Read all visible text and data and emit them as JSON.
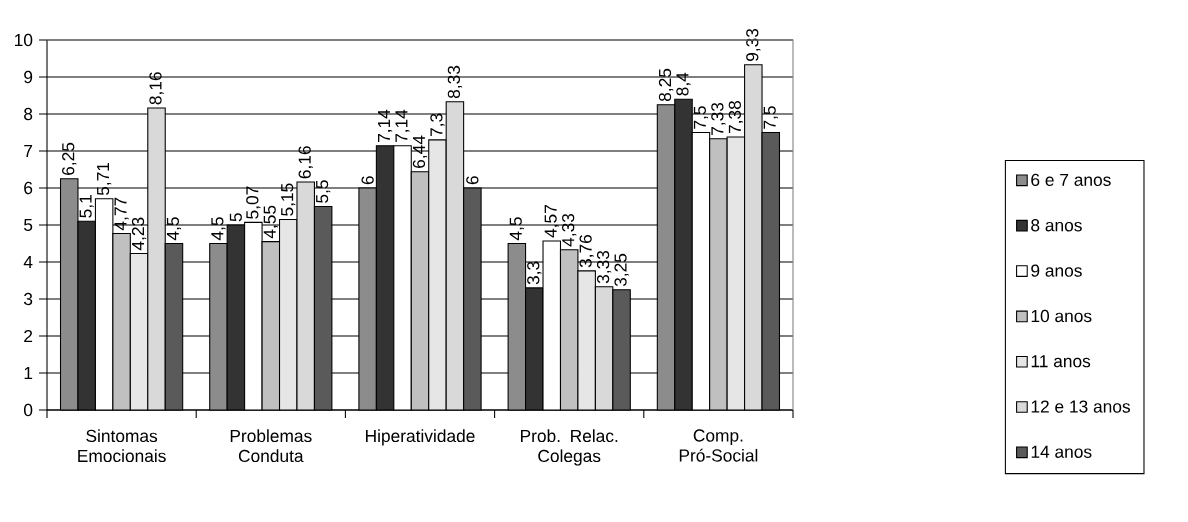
{
  "chart_data": {
    "type": "bar",
    "categories": [
      "Sintomas Emocionais",
      "Problemas Conduta",
      "Hiperatividade",
      "Prob. Relac. Colegas",
      "Comp. Pró-Social"
    ],
    "ylim": [
      0,
      10
    ],
    "yticks": [
      0,
      1,
      2,
      3,
      4,
      5,
      6,
      7,
      8,
      9,
      10
    ],
    "grid": "y",
    "legend": "right",
    "series": [
      {
        "name": "6 e 7 anos",
        "color": "#8c8c8c",
        "values": [
          6.25,
          4.5,
          6,
          4.5,
          8.25
        ],
        "value_labels": [
          "6,25",
          "4,5",
          "6",
          "4,5",
          "8,25"
        ]
      },
      {
        "name": "8 anos",
        "color": "#333333",
        "values": [
          5.1,
          5,
          7.14,
          3.3,
          8.4
        ],
        "value_labels": [
          "5,1",
          "5",
          "7,14",
          "3,3",
          "8,4"
        ]
      },
      {
        "name": "9 anos",
        "color": "#ffffff",
        "values": [
          5.71,
          5.07,
          7.14,
          4.57,
          7.5
        ],
        "value_labels": [
          "5,71",
          "5,07",
          "7,14",
          "4,57",
          "7,5"
        ]
      },
      {
        "name": "10 anos",
        "color": "#c0c0c0",
        "values": [
          4.77,
          4.55,
          6.44,
          4.33,
          7.33
        ],
        "value_labels": [
          "4,77",
          "4,55",
          "6,44",
          "4,33",
          "7,33"
        ]
      },
      {
        "name": "11 anos",
        "color": "#e6e6e6",
        "values": [
          4.23,
          5.15,
          7.3,
          3.76,
          7.38
        ],
        "value_labels": [
          "4,23",
          "5,15",
          "7,3",
          "3,76",
          "7,38"
        ]
      },
      {
        "name": "12 e 13 anos",
        "color": "#d9d9d9",
        "values": [
          8.16,
          6.16,
          8.33,
          3.33,
          9.33
        ],
        "value_labels": [
          "8,16",
          "6,16",
          "8,33",
          "3,33",
          "9,33"
        ]
      },
      {
        "name": "14 anos",
        "color": "#5a5a5a",
        "values": [
          4.5,
          5.5,
          6,
          3.25,
          7.5
        ],
        "value_labels": [
          "4,5",
          "5,5",
          "6",
          "3,25",
          "7,5"
        ]
      }
    ]
  }
}
